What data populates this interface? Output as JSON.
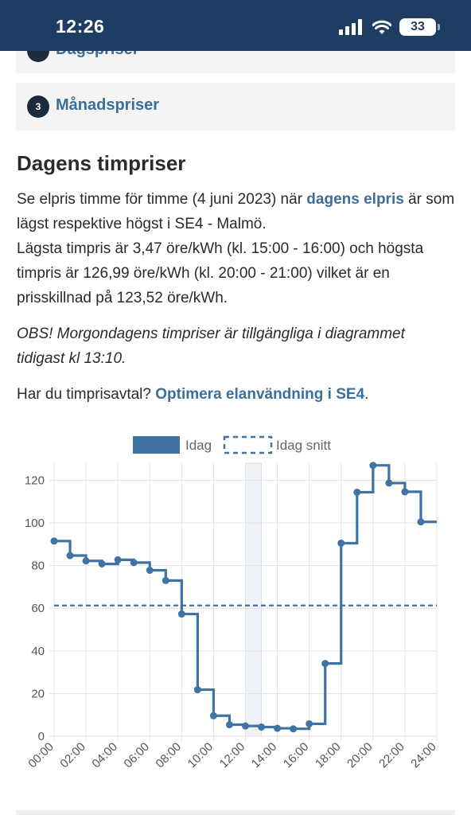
{
  "status_bar": {
    "time": "12:26",
    "battery": "33",
    "icons": [
      "signal-icon",
      "wifi-icon",
      "battery-icon"
    ]
  },
  "accordion": {
    "items": [
      {
        "number": "",
        "label": "Dagspriser"
      },
      {
        "number": "3",
        "label": "Månadspriser"
      }
    ]
  },
  "section": {
    "title": "Dagens timpriser",
    "intro_before_link": "Se elpris timme för timme (4 juni 2023) när ",
    "intro_link": "dagens elpris",
    "intro_after_link": " är som lägst respektive högst i SE4 - Malmö.",
    "summary": "Lägsta timpris är 3,47 öre/kWh (kl. 15:00 - 16:00) och högsta timpris är 126,99 öre/kWh (kl. 20:00 - 21:00) vilket är en prisskillnad på 123,52 öre/kWh.",
    "note": "OBS! Morgondagens timpriser är tillgängliga i diagrammet tidigast kl 13:10.",
    "offer_before_link": "Har du timprisavtal? ",
    "offer_link": "Optimera elanvändning i SE4",
    "offer_after_link": "."
  },
  "colors": {
    "series": "#3f73a3",
    "highlight": "#eef2f7",
    "grid": "#e3e3e3"
  },
  "chart_data": {
    "type": "line",
    "step": true,
    "legend": [
      "Idag",
      "Idag snitt"
    ],
    "legend_position": "top",
    "grid": true,
    "x_ticks": [
      "00:00",
      "02:00",
      "04:00",
      "06:00",
      "08:00",
      "10:00",
      "12:00",
      "14:00",
      "16:00",
      "18:00",
      "20:00",
      "22:00",
      "24:00"
    ],
    "y_ticks": [
      0,
      20,
      40,
      60,
      80,
      100,
      120
    ],
    "xlim": [
      0,
      24
    ],
    "ylim": [
      0,
      128
    ],
    "highlight_hour": 12,
    "average": 61.3,
    "series": [
      {
        "name": "Idag",
        "hours": [
          0,
          1,
          2,
          3,
          4,
          5,
          6,
          7,
          8,
          9,
          10,
          11,
          12,
          13,
          14,
          15,
          16,
          17,
          18,
          19,
          20,
          21,
          22,
          23
        ],
        "values": [
          91.5,
          84.7,
          82.2,
          80.8,
          82.7,
          81.4,
          77.8,
          73.0,
          57.3,
          21.8,
          9.6,
          5.4,
          4.8,
          4.3,
          3.7,
          3.47,
          5.8,
          34.1,
          90.5,
          114.4,
          126.99,
          118.7,
          114.6,
          100.5
        ]
      }
    ]
  }
}
